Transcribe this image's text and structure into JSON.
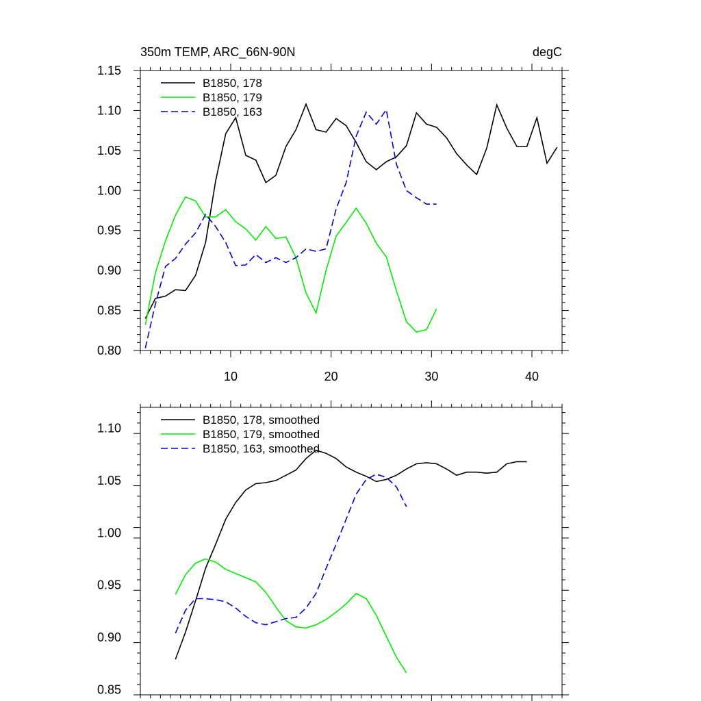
{
  "colors": {
    "black": "#000000",
    "green": "#00ee00",
    "blue": "#0000dd",
    "background": "#ffffff"
  },
  "chart_data": [
    {
      "type": "line",
      "title": "350m TEMP, ARC_66N-90N",
      "units": "degC",
      "xlim": [
        1,
        43
      ],
      "ylim": [
        0.8,
        1.15
      ],
      "grid": false,
      "legend_position": "top-left",
      "x_ticks": [
        10,
        20,
        30,
        40
      ],
      "y_ticks": [
        "0.80",
        "0.85",
        "0.90",
        "0.95",
        "1.00",
        "1.05",
        "1.10",
        "1.15"
      ],
      "series": [
        {
          "name": "B1850, 178",
          "color": "#000000",
          "style": "solid",
          "x": [
            1.5,
            2.5,
            3.5,
            4.5,
            5.5,
            6.5,
            7.5,
            8.5,
            9.5,
            10.5,
            11.5,
            12.5,
            13.5,
            14.5,
            15.5,
            16.5,
            17.5,
            18.5,
            19.5,
            20.5,
            21.5,
            22.5,
            23.5,
            24.5,
            25.5,
            26.5,
            27.5,
            28.5,
            29.5,
            30.5,
            31.5,
            32.5,
            33.5,
            34.5,
            35.5,
            36.5,
            37.5,
            38.5,
            39.5,
            40.5,
            41.5,
            42.5
          ],
          "y": [
            0.84,
            0.865,
            0.868,
            0.876,
            0.875,
            0.894,
            0.935,
            1.012,
            1.071,
            1.091,
            1.044,
            1.038,
            1.01,
            1.019,
            1.055,
            1.076,
            1.108,
            1.076,
            1.073,
            1.09,
            1.081,
            1.06,
            1.036,
            1.026,
            1.036,
            1.042,
            1.056,
            1.097,
            1.083,
            1.079,
            1.066,
            1.046,
            1.032,
            1.02,
            1.053,
            1.107,
            1.078,
            1.055,
            1.055,
            1.091,
            1.034,
            1.054
          ]
        },
        {
          "name": "B1850, 179",
          "color": "#00ee00",
          "style": "solid",
          "x": [
            1.5,
            2.5,
            3.5,
            4.5,
            5.5,
            6.5,
            7.5,
            8.5,
            9.5,
            10.5,
            11.5,
            12.5,
            13.5,
            14.5,
            15.5,
            16.5,
            17.5,
            18.5,
            19.5,
            20.5,
            21.5,
            22.5,
            23.5,
            24.5,
            25.5,
            26.5,
            27.5,
            28.5,
            29.5,
            30.5
          ],
          "y": [
            0.832,
            0.897,
            0.937,
            0.969,
            0.992,
            0.987,
            0.967,
            0.967,
            0.976,
            0.961,
            0.952,
            0.938,
            0.955,
            0.94,
            0.942,
            0.916,
            0.872,
            0.847,
            0.9,
            0.943,
            0.96,
            0.978,
            0.959,
            0.934,
            0.917,
            0.875,
            0.836,
            0.823,
            0.826,
            0.852
          ]
        },
        {
          "name": "B1850, 163",
          "color": "#0000dd",
          "style": "dashed",
          "x": [
            1.5,
            2.5,
            3.5,
            4.5,
            5.5,
            6.5,
            7.5,
            8.5,
            9.5,
            10.5,
            11.5,
            12.5,
            13.5,
            14.5,
            15.5,
            16.5,
            17.5,
            18.5,
            19.5,
            20.5,
            21.5,
            22.5,
            23.5,
            24.5,
            25.5,
            26.5,
            27.5,
            28.5,
            29.5,
            30.5
          ],
          "y": [
            0.803,
            0.858,
            0.905,
            0.915,
            0.933,
            0.947,
            0.97,
            0.955,
            0.935,
            0.906,
            0.907,
            0.92,
            0.91,
            0.916,
            0.91,
            0.916,
            0.927,
            0.924,
            0.927,
            0.977,
            1.01,
            1.068,
            1.098,
            1.083,
            1.101,
            1.033,
            1.0,
            0.991,
            0.983,
            0.983
          ]
        }
      ]
    },
    {
      "type": "line",
      "xlim": [
        1,
        43
      ],
      "ylim": [
        0.845,
        1.12
      ],
      "grid": false,
      "legend_position": "top-left",
      "x_ticks": [
        10,
        20,
        30,
        40
      ],
      "y_ticks": [
        "0.85",
        "0.90",
        "0.95",
        "1.00",
        "1.05",
        "1.10"
      ],
      "series": [
        {
          "name": "B1850, 178, smoothed",
          "color": "#000000",
          "style": "solid",
          "x": [
            4.5,
            5.5,
            6.5,
            7.5,
            8.5,
            9.5,
            10.5,
            11.5,
            12.5,
            13.5,
            14.5,
            15.5,
            16.5,
            17.5,
            18.5,
            19.5,
            20.5,
            21.5,
            22.5,
            23.5,
            24.5,
            25.5,
            26.5,
            27.5,
            28.5,
            29.5,
            30.5,
            31.5,
            32.5,
            33.5,
            34.5,
            35.5,
            36.5,
            37.5,
            38.5,
            39.5
          ],
          "y": [
            0.879,
            0.905,
            0.935,
            0.966,
            0.989,
            1.013,
            1.029,
            1.041,
            1.047,
            1.048,
            1.05,
            1.055,
            1.06,
            1.071,
            1.079,
            1.076,
            1.071,
            1.063,
            1.058,
            1.054,
            1.049,
            1.051,
            1.055,
            1.061,
            1.066,
            1.067,
            1.066,
            1.061,
            1.055,
            1.058,
            1.058,
            1.057,
            1.058,
            1.066,
            1.068,
            1.068
          ]
        },
        {
          "name": "B1850, 179, smoothed",
          "color": "#00ee00",
          "style": "solid",
          "x": [
            4.5,
            5.5,
            6.5,
            7.5,
            8.5,
            9.5,
            10.5,
            11.5,
            12.5,
            13.5,
            14.5,
            15.5,
            16.5,
            17.5,
            18.5,
            19.5,
            20.5,
            21.5,
            22.5,
            23.5,
            24.5,
            25.5,
            26.5,
            27.5
          ],
          "y": [
            0.941,
            0.96,
            0.971,
            0.975,
            0.972,
            0.965,
            0.961,
            0.957,
            0.953,
            0.943,
            0.929,
            0.916,
            0.91,
            0.909,
            0.912,
            0.917,
            0.924,
            0.932,
            0.942,
            0.937,
            0.921,
            0.901,
            0.881,
            0.866
          ]
        },
        {
          "name": "B1850, 163, smoothed",
          "color": "#0000dd",
          "style": "dashed",
          "x": [
            4.5,
            5.5,
            6.5,
            7.5,
            8.5,
            9.5,
            10.5,
            11.5,
            12.5,
            13.5,
            14.5,
            15.5,
            16.5,
            17.5,
            18.5,
            19.5,
            20.5,
            21.5,
            22.5,
            23.5,
            24.5,
            25.5,
            26.5,
            27.5
          ],
          "y": [
            0.904,
            0.926,
            0.937,
            0.937,
            0.936,
            0.934,
            0.928,
            0.92,
            0.914,
            0.912,
            0.915,
            0.918,
            0.919,
            0.928,
            0.942,
            0.966,
            0.989,
            1.013,
            1.037,
            1.051,
            1.056,
            1.053,
            1.044,
            1.025
          ]
        }
      ]
    }
  ]
}
